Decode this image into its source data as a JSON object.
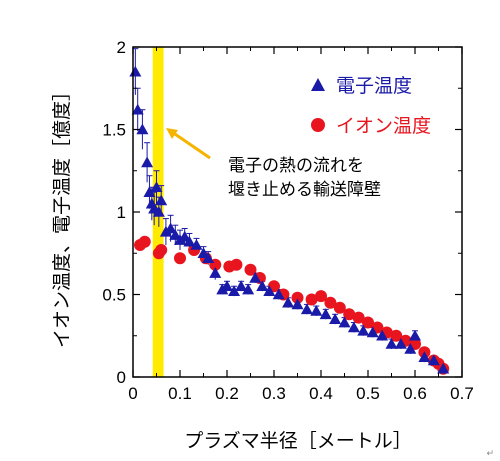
{
  "chart_data": {
    "type": "scatter",
    "xlabel": "プラズマ半径［メートル］",
    "ylabel": "イオン温度、電子温度［億度］",
    "xlim": [
      0,
      0.7
    ],
    "ylim": [
      0,
      2
    ],
    "x_ticks": [
      "0",
      "0.1",
      "0.2",
      "0.3",
      "0.4",
      "0.5",
      "0.6",
      "0.7"
    ],
    "y_ticks": [
      "0",
      "0.5",
      "1",
      "1.5",
      "2"
    ],
    "grid": false,
    "legend_position": "top-right",
    "series": [
      {
        "name": "電子温度",
        "marker": "triangle",
        "color": "#1a1aa8",
        "x": [
          0.005,
          0.01,
          0.02,
          0.03,
          0.035,
          0.04,
          0.045,
          0.05,
          0.055,
          0.06,
          0.07,
          0.08,
          0.09,
          0.1,
          0.11,
          0.12,
          0.135,
          0.15,
          0.16,
          0.175,
          0.19,
          0.2,
          0.215,
          0.23,
          0.245,
          0.26,
          0.275,
          0.29,
          0.31,
          0.33,
          0.35,
          0.37,
          0.39,
          0.41,
          0.43,
          0.45,
          0.47,
          0.49,
          0.51,
          0.53,
          0.55,
          0.57,
          0.59,
          0.6,
          0.62,
          0.64,
          0.66
        ],
        "y": [
          1.85,
          1.62,
          1.5,
          1.3,
          1.12,
          1.05,
          1.02,
          1.15,
          1.0,
          1.07,
          0.88,
          0.9,
          0.86,
          0.83,
          0.85,
          0.82,
          0.8,
          0.75,
          0.72,
          0.63,
          0.53,
          0.55,
          0.52,
          0.55,
          0.53,
          0.6,
          0.55,
          0.52,
          0.5,
          0.45,
          0.44,
          0.41,
          0.4,
          0.38,
          0.35,
          0.33,
          0.3,
          0.28,
          0.27,
          0.25,
          0.2,
          0.2,
          0.17,
          0.25,
          0.12,
          0.1,
          0.05
        ],
        "err": [
          0.14,
          0.13,
          0.12,
          0.12,
          0.1,
          0.1,
          0.1,
          0.1,
          0.09,
          0.09,
          0.08,
          0.08,
          0.06,
          0.06,
          0.05,
          0.05,
          0.04,
          0.04,
          0.04,
          0.04,
          0.03,
          0.03,
          0.03,
          0.03,
          0.03,
          0.03,
          0.03,
          0.03,
          0.03,
          0.03,
          0.03,
          0.03,
          0.03,
          0.03,
          0.03,
          0.03,
          0.03,
          0.03,
          0.03,
          0.03,
          0.03,
          0.03,
          0.03,
          0.03,
          0.03,
          0.02,
          0.02
        ]
      },
      {
        "name": "イオン温度",
        "marker": "circle",
        "color": "#e8141e",
        "x": [
          0.015,
          0.025,
          0.055,
          0.06,
          0.1,
          0.13,
          0.155,
          0.175,
          0.205,
          0.22,
          0.25,
          0.27,
          0.3,
          0.32,
          0.35,
          0.38,
          0.4,
          0.42,
          0.44,
          0.46,
          0.48,
          0.5,
          0.52,
          0.54,
          0.56,
          0.58,
          0.6,
          0.62,
          0.64,
          0.65,
          0.66
        ],
        "y": [
          0.8,
          0.82,
          0.75,
          0.77,
          0.72,
          0.77,
          0.72,
          0.68,
          0.67,
          0.68,
          0.65,
          0.6,
          0.55,
          0.5,
          0.48,
          0.47,
          0.49,
          0.45,
          0.42,
          0.38,
          0.36,
          0.33,
          0.3,
          0.27,
          0.25,
          0.22,
          0.2,
          0.15,
          0.1,
          0.08,
          0.05
        ]
      }
    ],
    "band": {
      "x_start": 0.042,
      "x_end": 0.065,
      "color": "#ffea00"
    },
    "annotation": {
      "lines": [
        "電子の熱の流れを",
        "堰き止める輸送障壁"
      ],
      "arrow_color": "#f5b400"
    }
  },
  "footer_mark": "↵"
}
